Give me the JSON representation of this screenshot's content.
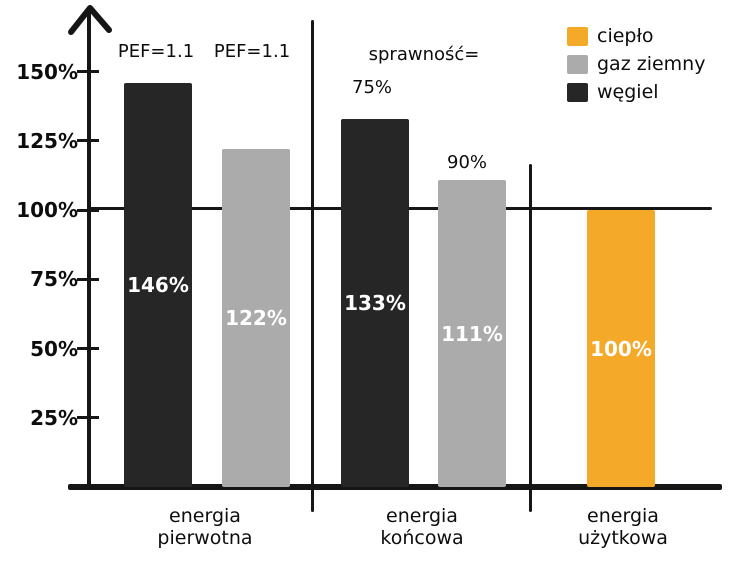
{
  "colors": {
    "cieplo": "#f5a928",
    "gaz_ziemny": "#ababab",
    "wegiel": "#262626",
    "axis": "#161616",
    "bar_value_text": "#ffffff",
    "background": "#ffffff"
  },
  "chart_data": {
    "type": "bar",
    "title": "",
    "xlabel": "",
    "ylabel": "",
    "y_axis": {
      "ticks": [
        "150%",
        "125%",
        "100%",
        "75%",
        "50%",
        "25%"
      ],
      "tick_values": [
        150,
        125,
        100,
        75,
        50,
        25
      ],
      "ylim": [
        0,
        168
      ],
      "reference_line_value": 100,
      "grid": false
    },
    "groups": [
      {
        "label_line1": "energia",
        "label_line2": "pierwotna",
        "annotation": "",
        "bars": [
          {
            "series": "węgiel",
            "value": 146,
            "value_label": "146%",
            "annotation": "PEF=1.1"
          },
          {
            "series": "gaz ziemny",
            "value": 122,
            "value_label": "122%",
            "annotation": "PEF=1.1"
          }
        ]
      },
      {
        "label_line1": "energia",
        "label_line2": "końcowa",
        "annotation": "sprawność=",
        "bars": [
          {
            "series": "węgiel",
            "value": 133,
            "value_label": "133%",
            "annotation": "75%"
          },
          {
            "series": "gaz ziemny",
            "value": 111,
            "value_label": "111%",
            "annotation": "90%"
          }
        ]
      },
      {
        "label_line1": "energia",
        "label_line2": "użytkowa",
        "annotation": "",
        "bars": [
          {
            "series": "ciepło",
            "value": 100,
            "value_label": "100%",
            "annotation": ""
          }
        ]
      }
    ],
    "legend": {
      "position": "top-right",
      "entries": [
        {
          "label": "ciepło",
          "color": "#f5a928"
        },
        {
          "label": "gaz ziemny",
          "color": "#ababab"
        },
        {
          "label": "węgiel",
          "color": "#262626"
        }
      ]
    }
  }
}
